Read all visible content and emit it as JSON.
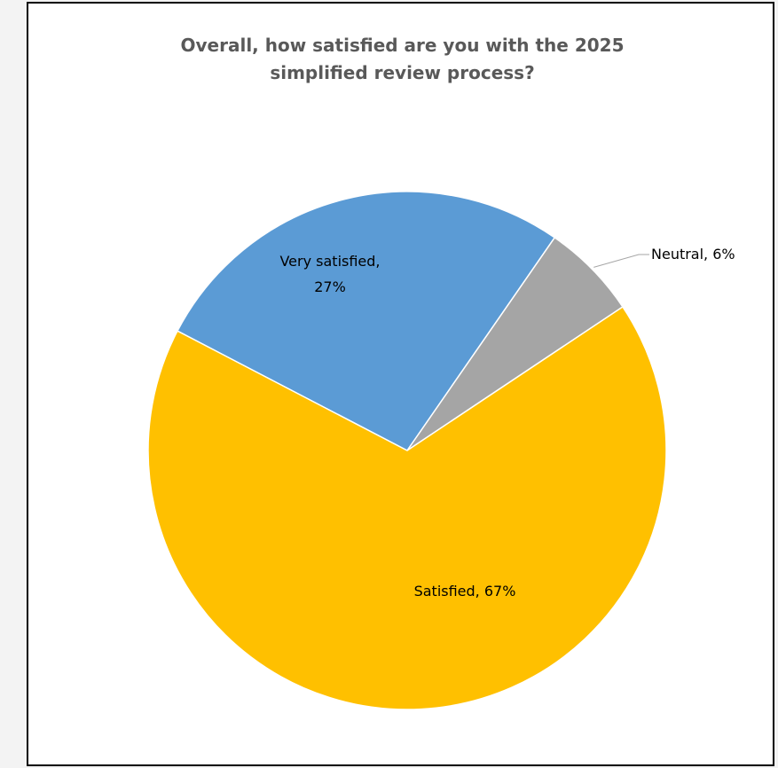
{
  "chart_data": {
    "type": "pie",
    "title": "Overall, how satisfied are you with the 2025 simplified review process?",
    "title_lines": [
      "Overall, how satisfied are you with the 2025",
      "simplified review process?"
    ],
    "slices": [
      {
        "label": "Very satisfied",
        "value": 27,
        "display": [
          "Very satisfied,",
          "27%"
        ],
        "color": "#5B9BD5"
      },
      {
        "label": "Neutral",
        "value": 6,
        "display": [
          "Neutral, 6%"
        ],
        "color": "#A5A5A5"
      },
      {
        "label": "Satisfied",
        "value": 67,
        "display": [
          "Satisfied, 67%"
        ],
        "color": "#FFC000"
      }
    ],
    "start_angle": "clockwise from ~300° (Very satisfied first)",
    "legend": "none"
  }
}
